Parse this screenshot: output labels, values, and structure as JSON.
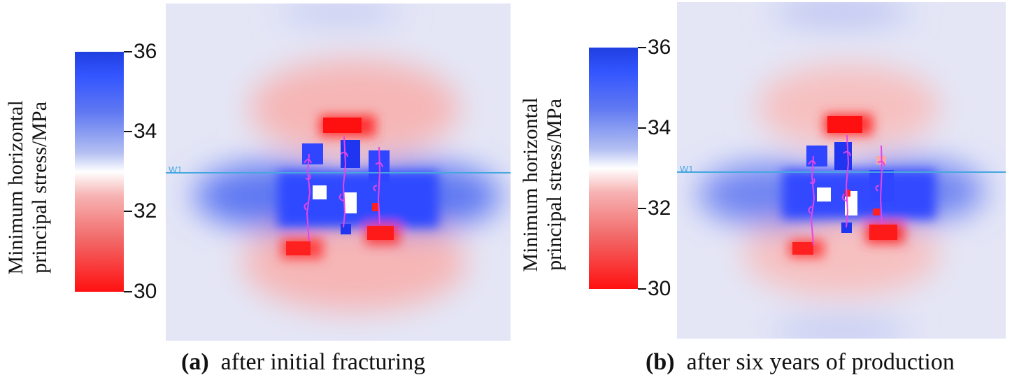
{
  "colorbar": {
    "title_line1": "Minimum horizontal",
    "title_line2": "principal stress/MPa",
    "ticks": [
      "36",
      "34",
      "32",
      "30"
    ],
    "max_color": "#1f3fe0",
    "mid_color": "#ffffff",
    "min_color": "#ff1010"
  },
  "well_label": "W1",
  "well_line_color": "#45a6e0",
  "fracture_color": "#e645e6",
  "panels": [
    {
      "tag": "(a)",
      "caption": "after initial fracturing"
    },
    {
      "tag": "(b)",
      "caption": "after six years of production"
    }
  ]
}
